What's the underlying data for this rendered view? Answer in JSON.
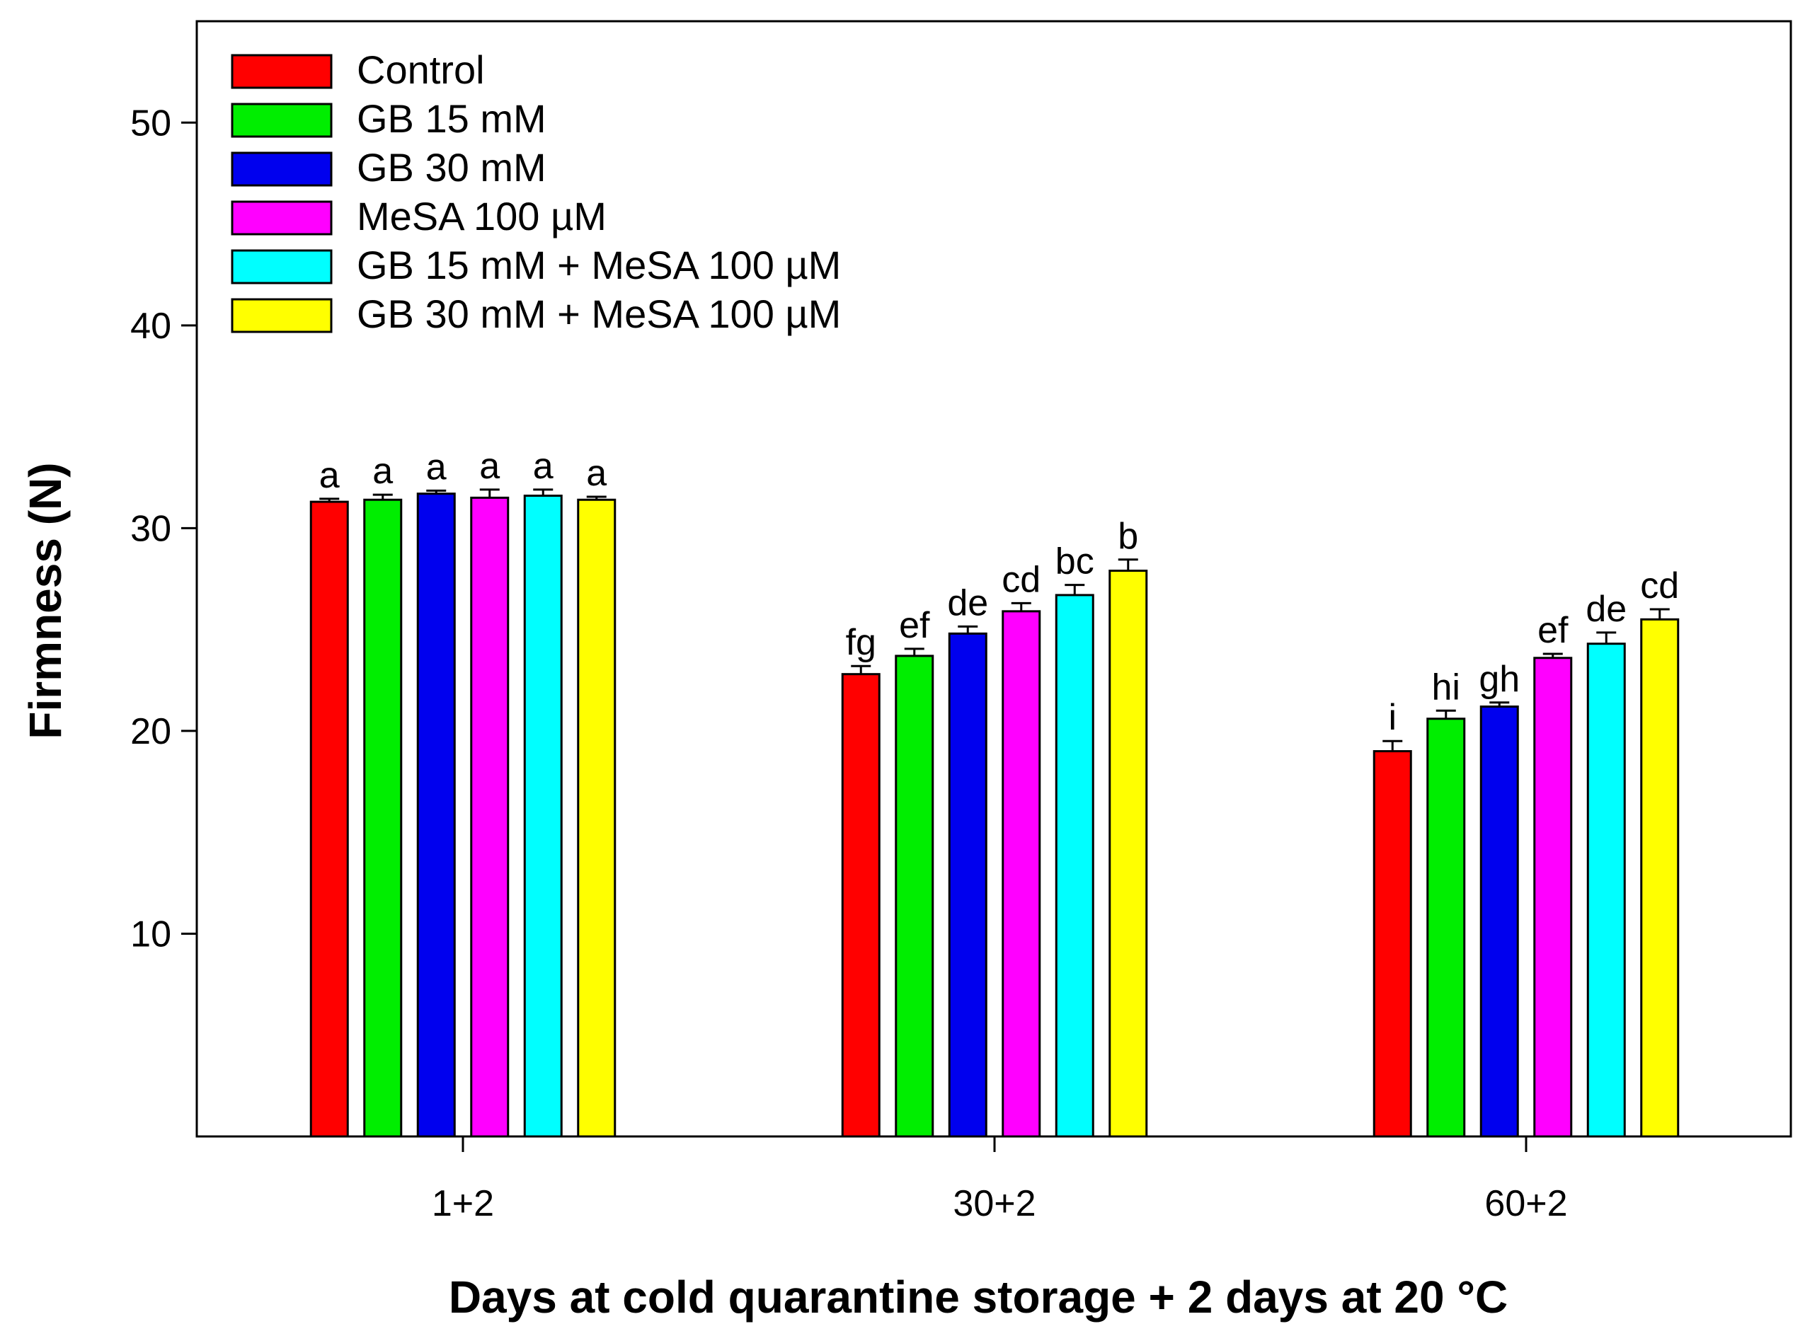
{
  "chart_data": {
    "type": "bar",
    "title": "",
    "xlabel": "Days at cold quarantine storage + 2 days at 20 °C",
    "ylabel": "Firmness (N)",
    "ylim": [
      0,
      55
    ],
    "yticks": [
      10,
      20,
      30,
      40,
      50
    ],
    "categories": [
      "1+2",
      "30+2",
      "60+2"
    ],
    "legend_position": "top-left",
    "series": [
      {
        "name": "Control",
        "color": "#ff0000",
        "values": [
          31.3,
          22.8,
          19.0
        ],
        "errors": [
          0.15,
          0.4,
          0.5
        ],
        "letters": [
          "a",
          "fg",
          "i"
        ]
      },
      {
        "name": "GB 15 mM",
        "color": "#00ee00",
        "values": [
          31.4,
          23.7,
          20.6
        ],
        "errors": [
          0.25,
          0.35,
          0.4
        ],
        "letters": [
          "a",
          "ef",
          "hi"
        ]
      },
      {
        "name": "GB 30 mM",
        "color": "#0000ee",
        "values": [
          31.7,
          24.8,
          21.2
        ],
        "errors": [
          0.15,
          0.35,
          0.2
        ],
        "letters": [
          "a",
          "de",
          "gh"
        ]
      },
      {
        "name": "MeSA 100 µM",
        "color": "#ff00ff",
        "values": [
          31.5,
          25.9,
          23.6
        ],
        "errors": [
          0.4,
          0.4,
          0.2
        ],
        "letters": [
          "a",
          "cd",
          "ef"
        ]
      },
      {
        "name": "GB 15 mM + MeSA 100 µM",
        "color": "#00ffff",
        "values": [
          31.6,
          26.7,
          24.3
        ],
        "errors": [
          0.3,
          0.5,
          0.55
        ],
        "letters": [
          "a",
          "bc",
          "de"
        ]
      },
      {
        "name": "GB 30 mM + MeSA 100 µM",
        "color": "#ffff00",
        "values": [
          31.4,
          27.9,
          25.5
        ],
        "errors": [
          0.15,
          0.55,
          0.5
        ],
        "letters": [
          "a",
          "b",
          "cd"
        ]
      }
    ]
  }
}
